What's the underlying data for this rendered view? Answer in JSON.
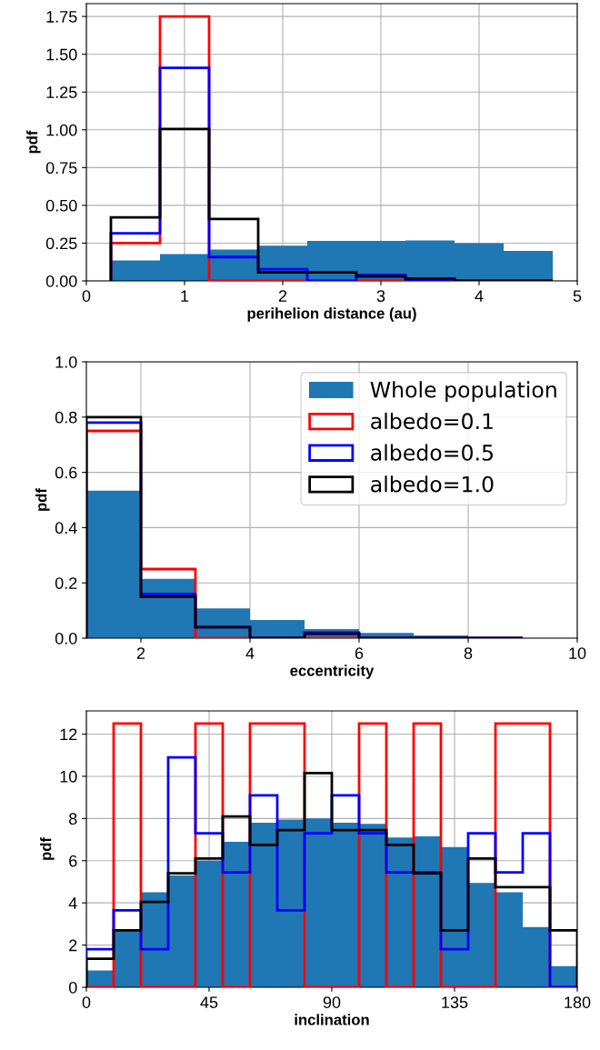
{
  "chart_data": [
    {
      "type": "histogram",
      "xlabel": "perihelion distance (au)",
      "ylabel": "pdf",
      "bins": [
        0.25,
        0.75,
        1.25,
        1.75,
        2.25,
        2.75,
        3.25,
        3.75,
        4.25,
        4.75
      ],
      "xlim": [
        0,
        5
      ],
      "xticks": [
        0,
        1,
        2,
        3,
        4,
        5
      ],
      "ylim": [
        0,
        1.835
      ],
      "yticks": [
        {
          "value": 0,
          "label": "0.00"
        },
        {
          "value": 0.25,
          "label": "0.25"
        },
        {
          "value": 0.5,
          "label": "0.50"
        },
        {
          "value": 0.75,
          "label": "0.75"
        },
        {
          "value": 1,
          "label": "1.00"
        },
        {
          "value": 1.25,
          "label": "1.25"
        },
        {
          "value": 1.5,
          "label": "1.50"
        },
        {
          "value": 1.75,
          "label": "1.75"
        }
      ],
      "grid": true,
      "series": [
        {
          "color": "#1f77b4",
          "values": [
            0.135,
            0.178,
            0.208,
            0.233,
            0.264,
            0.264,
            0.268,
            0.249,
            0.198
          ]
        },
        {
          "color": "#ff0000",
          "values": [
            0.25,
            1.75,
            0,
            0,
            0,
            0,
            0,
            0,
            0
          ]
        },
        {
          "color": "#0000ff",
          "values": [
            0.315,
            1.41,
            0.158,
            0.078,
            0,
            0.04,
            0,
            0,
            0
          ]
        },
        {
          "color": "#000000",
          "values": [
            0.42,
            1.005,
            0.41,
            0.057,
            0.057,
            0.03,
            0.015,
            0,
            0
          ]
        }
      ]
    },
    {
      "type": "histogram",
      "xlabel": "eccentricity",
      "ylabel": "pdf",
      "bins": [
        1,
        2,
        3,
        4,
        5,
        6,
        7,
        8,
        9
      ],
      "xlim": [
        1,
        10
      ],
      "xticks": [
        2,
        4,
        6,
        8,
        10
      ],
      "ylim": [
        0,
        1.0
      ],
      "yticks": [
        {
          "value": 0,
          "label": "0.0"
        },
        {
          "value": 0.2,
          "label": "0.2"
        },
        {
          "value": 0.4,
          "label": "0.4"
        },
        {
          "value": 0.6,
          "label": "0.6"
        },
        {
          "value": 0.8,
          "label": "0.8"
        },
        {
          "value": 1.0,
          "label": "1.0"
        }
      ],
      "grid": true,
      "legend": "top right",
      "series": [
        {
          "name": "Whole population",
          "color": "#1f77b4",
          "values": [
            0.534,
            0.215,
            0.108,
            0.066,
            0.033,
            0.019,
            0.01,
            0.004
          ]
        },
        {
          "name": "albedo=0.1",
          "color": "#ff0000",
          "values": [
            0.75,
            0.25,
            0,
            0,
            0,
            0,
            0,
            0
          ]
        },
        {
          "name": "albedo=0.5",
          "color": "#0000ff",
          "values": [
            0.78,
            0.16,
            0.04,
            0,
            0.02,
            0,
            0,
            0
          ]
        },
        {
          "name": "albedo=1.0",
          "color": "#000000",
          "values": [
            0.8,
            0.15,
            0.04,
            0,
            0.016,
            0,
            0,
            0
          ]
        }
      ]
    },
    {
      "type": "histogram",
      "xlabel": "inclination",
      "ylabel": "pdf",
      "bins": [
        0,
        10,
        20,
        30,
        40,
        50,
        60,
        70,
        80,
        90,
        100,
        110,
        120,
        130,
        140,
        150,
        160,
        170,
        180
      ],
      "xlim": [
        0,
        180
      ],
      "xticks": [
        0,
        45,
        90,
        135,
        180
      ],
      "ylim": [
        0,
        13.1
      ],
      "yticks": [
        0,
        2,
        4,
        6,
        8,
        10,
        12
      ],
      "grid": true,
      "series": [
        {
          "color": "#1f77b4",
          "values": [
            0.8,
            2.7,
            4.5,
            5.3,
            6.0,
            6.9,
            7.8,
            7.95,
            8.0,
            7.8,
            7.75,
            7.1,
            7.15,
            6.65,
            4.95,
            4.5,
            2.85,
            1.0
          ]
        },
        {
          "color": "#ff0000",
          "values": [
            0,
            12.5,
            0,
            0,
            12.5,
            0,
            12.5,
            12.5,
            0,
            0,
            12.5,
            0,
            12.5,
            0,
            0,
            12.5,
            12.5,
            0
          ]
        },
        {
          "color": "#0000ff",
          "values": [
            1.8,
            3.65,
            1.8,
            10.9,
            7.3,
            5.45,
            9.1,
            3.65,
            7.3,
            9.1,
            7.3,
            5.45,
            5.45,
            1.8,
            7.3,
            5.45,
            7.3,
            0
          ]
        },
        {
          "color": "#000000",
          "values": [
            1.35,
            2.7,
            4.05,
            5.4,
            6.1,
            8.1,
            6.75,
            7.45,
            10.15,
            7.45,
            7.45,
            6.75,
            5.4,
            2.7,
            6.1,
            4.75,
            4.75,
            2.7
          ]
        }
      ]
    }
  ]
}
